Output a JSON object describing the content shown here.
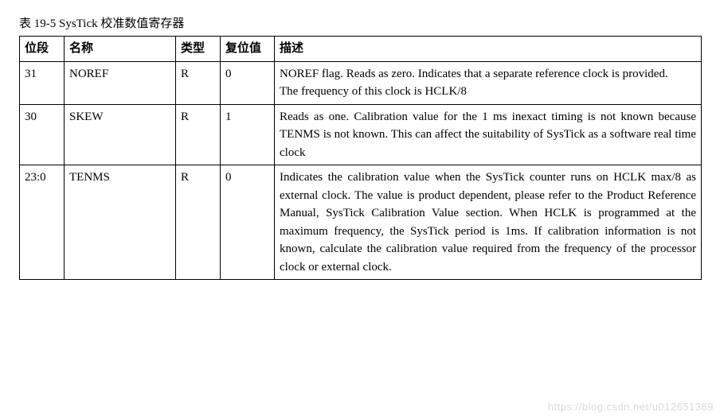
{
  "caption": "表 19-5 SysTick 校准数值寄存器",
  "headers": {
    "bits": "位段",
    "name": "名称",
    "type": "类型",
    "reset": "复位值",
    "desc": "描述"
  },
  "rows": [
    {
      "bits": "31",
      "name": "NOREF",
      "type": "R",
      "reset": "0",
      "desc": [
        "NOREF flag. Reads as zero. Indicates that a separate reference clock is provided.",
        "The frequency of this clock is HCLK/8"
      ]
    },
    {
      "bits": "30",
      "name": "SKEW",
      "type": "R",
      "reset": "1",
      "desc": [
        "Reads as one. Calibration value for the 1 ms inexact timing is not known because TENMS is not known. This can affect the suitability of SysTick as a software real time clock"
      ]
    },
    {
      "bits": "23:0",
      "name": "TENMS",
      "type": "R",
      "reset": "0",
      "desc": [
        "Indicates the calibration value when the SysTick counter runs on HCLK max/8 as external clock. The value is product dependent, please refer to the Product Reference Manual, SysTick Calibration Value section. When HCLK is programmed at the maximum frequency, the SysTick period is 1ms. If calibration information is not known, calculate the calibration value required from the frequency of the processor clock or external clock."
      ]
    }
  ],
  "columns": {
    "bits_width": 56,
    "name_width": 140,
    "type_width": 56,
    "reset_width": 68,
    "desc_width": 536
  },
  "watermark": "https://blog.csdn.net/u012651389"
}
